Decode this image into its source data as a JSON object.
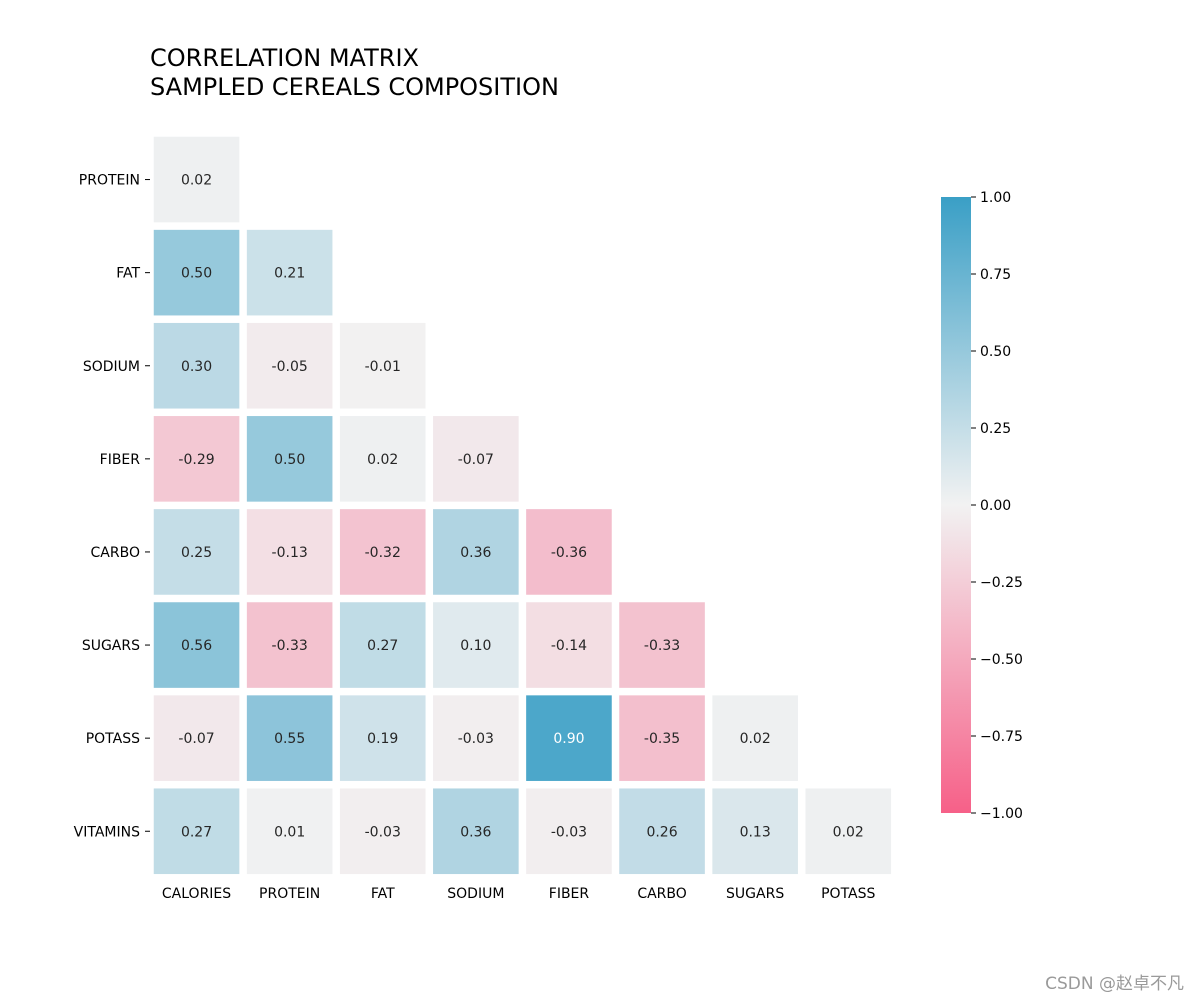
{
  "chart_data": {
    "type": "heatmap",
    "title": [
      "CORRELATION MATRIX",
      "SAMPLED CEREALS COMPOSITION"
    ],
    "columns": [
      "CALORIES",
      "PROTEIN",
      "FAT",
      "SODIUM",
      "FIBER",
      "CARBO",
      "SUGARS",
      "POTASS"
    ],
    "rows": [
      "PROTEIN",
      "FAT",
      "SODIUM",
      "FIBER",
      "CARBO",
      "SUGARS",
      "POTASS",
      "VITAMINS"
    ],
    "matrix": [
      [
        0.02
      ],
      [
        0.5,
        0.21
      ],
      [
        0.3,
        -0.05,
        -0.01
      ],
      [
        -0.29,
        0.5,
        0.02,
        -0.07
      ],
      [
        0.25,
        -0.13,
        -0.32,
        0.36,
        -0.36
      ],
      [
        0.56,
        -0.33,
        0.27,
        0.1,
        -0.14,
        -0.33
      ],
      [
        -0.07,
        0.55,
        0.19,
        -0.03,
        0.9,
        -0.35,
        0.02
      ],
      [
        0.27,
        0.01,
        -0.03,
        0.36,
        -0.03,
        0.26,
        0.13,
        0.02
      ]
    ],
    "value_format": "0.00",
    "colorbar": {
      "min": -1.0,
      "max": 1.0,
      "ticks": [
        1.0,
        0.75,
        0.5,
        0.25,
        0.0,
        -0.25,
        -0.5,
        -0.75,
        -1.0
      ],
      "tick_labels": [
        "1.00",
        "0.75",
        "0.50",
        "0.25",
        "0.00",
        "−0.25",
        "−0.50",
        "−0.75",
        "−1.00"
      ]
    },
    "colors": {
      "negative_end": "#f66088",
      "middle": "#f2f2f2",
      "positive_end": "#3a9fc6",
      "label_dark": "#262626",
      "label_light": "#ffffff",
      "axis_text": "#000000"
    },
    "mask": "upper-triangle"
  },
  "watermark": "CSDN @赵卓不凡"
}
